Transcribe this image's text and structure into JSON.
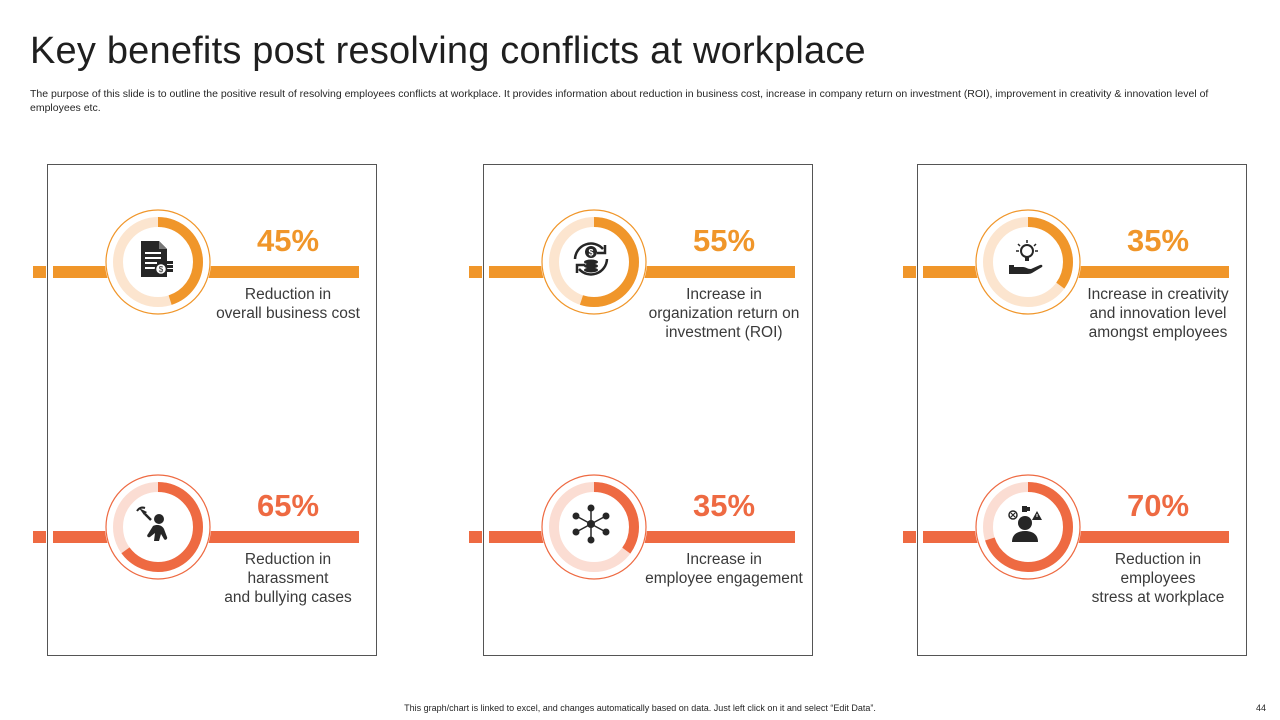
{
  "slide": {
    "title": "Key benefits post resolving conflicts at workplace",
    "subtitle": "The purpose of this slide is to outline the positive result of resolving employees conflicts at workplace. It provides information about reduction in business cost, increase in company return on investment (ROI), improvement in creativity & innovation level of employees etc.",
    "footer_note": "This graph/chart is linked to excel, and changes automatically based on data. Just left click on it and select “Edit Data”.",
    "page_number": "44"
  },
  "colors": {
    "top_accent": "#F0962A",
    "top_light": "#FCE5CF",
    "bottom_accent": "#EE6A42",
    "bottom_light": "#FBDDD3",
    "icon_dark": "#262626"
  },
  "cards": [
    {
      "percent_label": "45%",
      "description": "Reduction in\noverall business cost",
      "icon": "document-dollar-icon",
      "row": "top"
    },
    {
      "percent_label": "55%",
      "description": "Increase in\norganization return on\ninvestment (ROI)",
      "icon": "coin-cycle-icon",
      "row": "top"
    },
    {
      "percent_label": "35%",
      "description": "Increase in creativity\nand innovation level\namongst employees",
      "icon": "lightbulb-hand-icon",
      "row": "top"
    },
    {
      "percent_label": "65%",
      "description": "Reduction in\nharassment\nand bullying cases",
      "icon": "harassment-icon",
      "row": "bottom"
    },
    {
      "percent_label": "35%",
      "description": "Increase in\nemployee engagement",
      "icon": "team-network-icon",
      "row": "bottom"
    },
    {
      "percent_label": "70%",
      "description": "Reduction in\nemployees\nstress at workplace",
      "icon": "stressed-person-icon",
      "row": "bottom"
    }
  ],
  "chart_data": {
    "type": "pie",
    "categories": [
      "Reduction in overall business cost",
      "Increase in organization return on investment (ROI)",
      "Increase in creativity and innovation level amongst employees",
      "Reduction in harassment and bullying cases",
      "Increase in employee engagement",
      "Reduction in employees stress at workplace"
    ],
    "values": [
      45,
      55,
      35,
      65,
      35,
      70
    ],
    "unit": "%",
    "layout": "six donut gauges in a 3 x 2 grid"
  }
}
